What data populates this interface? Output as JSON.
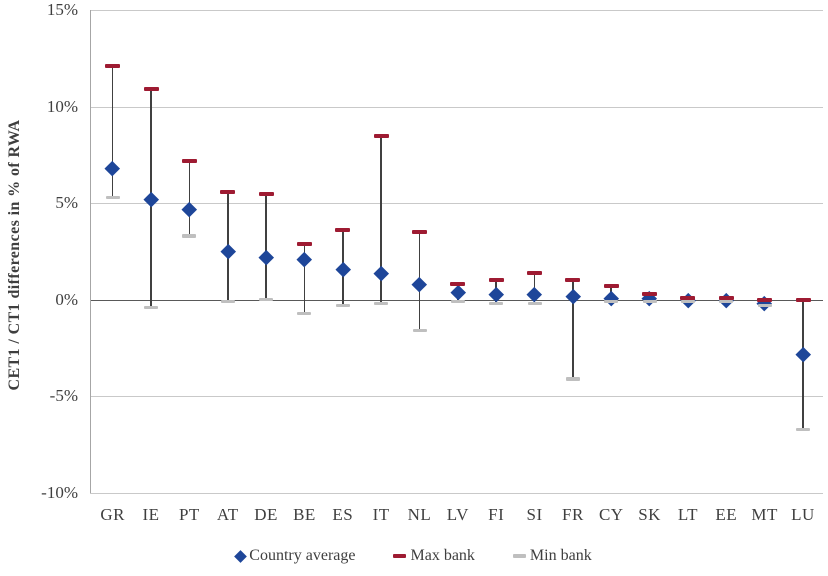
{
  "chart_data": {
    "type": "scatter",
    "title": "",
    "ylabel": "CET1 / CT1 differences in % of RWA",
    "xlabel": "",
    "ylim": [
      -10,
      15
    ],
    "grid": true,
    "legend_position": "bottom-center",
    "yticks": [
      {
        "label": "15%",
        "value": 15
      },
      {
        "label": "10%",
        "value": 10
      },
      {
        "label": "5%",
        "value": 5
      },
      {
        "label": "0%",
        "value": 0
      },
      {
        "label": "-5%",
        "value": -5
      },
      {
        "label": "-10%",
        "value": -10
      }
    ],
    "categories": [
      "GR",
      "IE",
      "PT",
      "AT",
      "DE",
      "BE",
      "ES",
      "IT",
      "NL",
      "LV",
      "FI",
      "SI",
      "FR",
      "CY",
      "SK",
      "LT",
      "EE",
      "MT",
      "LU"
    ],
    "series": [
      {
        "name": "Country average",
        "marker": "diamond",
        "color": "#1e4699",
        "values": [
          6.8,
          5.2,
          4.7,
          2.5,
          2.2,
          2.1,
          1.6,
          1.4,
          0.8,
          0.4,
          0.3,
          0.3,
          0.2,
          0.1,
          0.1,
          0.0,
          0.0,
          -0.2,
          -2.8
        ]
      },
      {
        "name": "Max bank",
        "marker": "dash",
        "color": "#9e1b32",
        "values": [
          12.1,
          10.9,
          7.2,
          5.6,
          5.5,
          2.9,
          3.6,
          8.5,
          3.5,
          0.8,
          1.0,
          1.4,
          1.0,
          0.7,
          0.3,
          0.1,
          0.1,
          0.0,
          0.0
        ]
      },
      {
        "name": "Min bank",
        "marker": "dash",
        "color": "#bfbfbf",
        "values": [
          5.3,
          -0.4,
          3.3,
          -0.1,
          0.0,
          -0.7,
          -0.3,
          -0.2,
          -1.6,
          -0.1,
          -0.2,
          -0.2,
          -4.1,
          -0.1,
          -0.1,
          -0.1,
          -0.1,
          -0.3,
          -6.7
        ]
      }
    ],
    "colors": {
      "gridline": "#c9c9c9",
      "zero_line": "#595959",
      "axis_line": "#a6a6a6",
      "whisker": "#404040",
      "text": "#3f3f3f"
    }
  }
}
